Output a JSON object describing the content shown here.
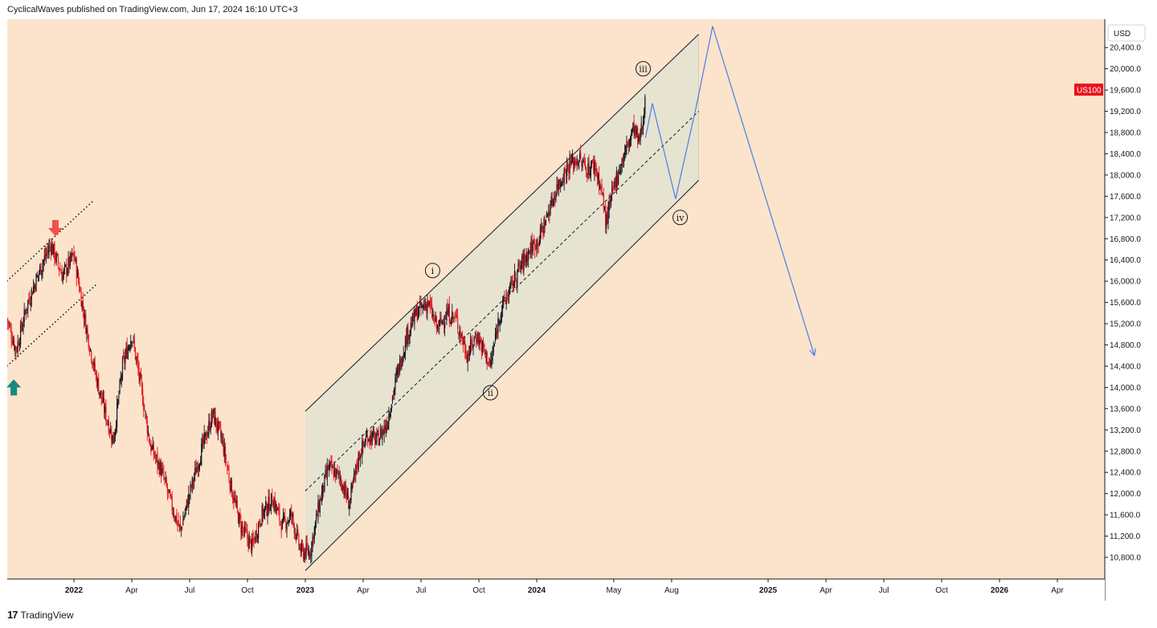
{
  "header": {
    "published": "CyclicalWaves published on TradingView.com, Jun 17, 2024 16:10 UTC+3"
  },
  "footer": {
    "brand": "TradingView",
    "logo": "17"
  },
  "currency_button": "USD",
  "symbol_badge": "US100",
  "colors": {
    "background": "#fbe4cb",
    "channel_fill": "#e3e3d2",
    "candle_up": "#131722",
    "candle_down": "#e8131d",
    "projection": "#4c7ce8",
    "arrow_down": "#f1514d",
    "arrow_up": "#138a80",
    "badge": "#e8131d"
  },
  "chart_data": {
    "type": "candlestick",
    "symbol": "US100",
    "currency": "USD",
    "y_ticks": [
      "10,800.0",
      "11,200.0",
      "11,600.0",
      "12,000.0",
      "12,400.0",
      "12,800.0",
      "13,200.0",
      "13,600.0",
      "14,000.0",
      "14,400.0",
      "14,800.0",
      "15,200.0",
      "15,600.0",
      "16,000.0",
      "16,400.0",
      "16,800.0",
      "17,200.0",
      "17,600.0",
      "18,000.0",
      "18,400.0",
      "18,800.0",
      "19,200.0",
      "19,600.0",
      "20,000.0",
      "20,400.0"
    ],
    "y_tick_values": [
      10800,
      11200,
      11600,
      12000,
      12400,
      12800,
      13200,
      13600,
      14000,
      14400,
      14800,
      15200,
      15600,
      16000,
      16400,
      16800,
      17200,
      17600,
      18000,
      18400,
      18800,
      19200,
      19600,
      20000,
      20400
    ],
    "x_ticks": [
      {
        "label": "2022",
        "t": 2022.0,
        "bold": true
      },
      {
        "label": "Apr",
        "t": 2022.25,
        "bold": false
      },
      {
        "label": "Jul",
        "t": 2022.5,
        "bold": false
      },
      {
        "label": "Oct",
        "t": 2022.75,
        "bold": false
      },
      {
        "label": "2023",
        "t": 2023.0,
        "bold": true
      },
      {
        "label": "Apr",
        "t": 2023.25,
        "bold": false
      },
      {
        "label": "Jul",
        "t": 2023.5,
        "bold": false
      },
      {
        "label": "Oct",
        "t": 2023.75,
        "bold": false
      },
      {
        "label": "2024",
        "t": 2024.0,
        "bold": true
      },
      {
        "label": "May",
        "t": 2024.333,
        "bold": false
      },
      {
        "label": "Aug",
        "t": 2024.583,
        "bold": false
      },
      {
        "label": "2025",
        "t": 2025.0,
        "bold": true
      },
      {
        "label": "Apr",
        "t": 2025.25,
        "bold": false
      },
      {
        "label": "Jul",
        "t": 2025.5,
        "bold": false
      },
      {
        "label": "Oct",
        "t": 2025.75,
        "bold": false
      },
      {
        "label": "2026",
        "t": 2026.0,
        "bold": true
      },
      {
        "label": "Apr",
        "t": 2026.25,
        "bold": false
      }
    ],
    "price_path": [
      [
        2021.71,
        15300
      ],
      [
        2021.75,
        14700
      ],
      [
        2021.8,
        15600
      ],
      [
        2021.86,
        16300
      ],
      [
        2021.9,
        16700
      ],
      [
        2021.95,
        16100
      ],
      [
        2022.0,
        16500
      ],
      [
        2022.05,
        15200
      ],
      [
        2022.09,
        14300
      ],
      [
        2022.13,
        13600
      ],
      [
        2022.17,
        13000
      ],
      [
        2022.21,
        14400
      ],
      [
        2022.25,
        15000
      ],
      [
        2022.29,
        14000
      ],
      [
        2022.33,
        12900
      ],
      [
        2022.38,
        12400
      ],
      [
        2022.42,
        11800
      ],
      [
        2022.46,
        11300
      ],
      [
        2022.5,
        12000
      ],
      [
        2022.55,
        12800
      ],
      [
        2022.6,
        13500
      ],
      [
        2022.64,
        13000
      ],
      [
        2022.68,
        12100
      ],
      [
        2022.72,
        11400
      ],
      [
        2022.77,
        11000
      ],
      [
        2022.81,
        11600
      ],
      [
        2022.86,
        11900
      ],
      [
        2022.9,
        11400
      ],
      [
        2022.94,
        11600
      ],
      [
        2022.98,
        10900
      ],
      [
        2023.02,
        10900
      ],
      [
        2023.06,
        11800
      ],
      [
        2023.1,
        12500
      ],
      [
        2023.15,
        12300
      ],
      [
        2023.19,
        11800
      ],
      [
        2023.23,
        12700
      ],
      [
        2023.27,
        13100
      ],
      [
        2023.31,
        13000
      ],
      [
        2023.35,
        13300
      ],
      [
        2023.4,
        14300
      ],
      [
        2023.44,
        15000
      ],
      [
        2023.48,
        15400
      ],
      [
        2023.53,
        15600
      ],
      [
        2023.57,
        15100
      ],
      [
        2023.61,
        15400
      ],
      [
        2023.65,
        15300
      ],
      [
        2023.7,
        14600
      ],
      [
        2023.74,
        15000
      ],
      [
        2023.8,
        14400
      ],
      [
        2023.84,
        15400
      ],
      [
        2023.88,
        15800
      ],
      [
        2023.92,
        16200
      ],
      [
        2023.97,
        16600
      ],
      [
        2024.01,
        16800
      ],
      [
        2024.05,
        17300
      ],
      [
        2024.09,
        17800
      ],
      [
        2024.14,
        18200
      ],
      [
        2024.18,
        18300
      ],
      [
        2024.22,
        18100
      ],
      [
        2024.25,
        18200
      ],
      [
        2024.28,
        17700
      ],
      [
        2024.3,
        17100
      ],
      [
        2024.34,
        17900
      ],
      [
        2024.38,
        18400
      ],
      [
        2024.42,
        18900
      ],
      [
        2024.44,
        18600
      ],
      [
        2024.46,
        19000
      ],
      [
        2024.47,
        19700
      ]
    ],
    "channel": {
      "upper": [
        [
          2023.0,
          13550
        ],
        [
          2024.7,
          20650
        ]
      ],
      "mid": [
        [
          2023.0,
          12050
        ],
        [
          2024.7,
          19200
        ]
      ],
      "lower": [
        [
          2023.0,
          10550
        ],
        [
          2024.7,
          17900
        ]
      ]
    },
    "left_channel": {
      "upper": [
        [
          2021.71,
          16000
        ],
        [
          2022.08,
          17500
        ]
      ],
      "lower": [
        [
          2021.71,
          14400
        ],
        [
          2022.1,
          15950
        ]
      ]
    },
    "projection": {
      "path": [
        [
          2024.47,
          18700
        ],
        [
          2024.5,
          19350
        ],
        [
          2024.6,
          17550
        ],
        [
          2024.69,
          19300
        ],
        [
          2024.76,
          20800
        ],
        [
          2025.2,
          14600
        ]
      ],
      "arrow_end": [
        2025.2,
        14600
      ]
    },
    "wave_labels": [
      {
        "label": "i",
        "t": 2023.55,
        "price": 16200
      },
      {
        "label": "ii",
        "t": 2023.8,
        "price": 13900
      },
      {
        "label": "iii",
        "t": 2024.46,
        "price": 20000
      },
      {
        "label": "iv",
        "t": 2024.62,
        "price": 17200
      }
    ],
    "markers": [
      {
        "type": "down-arrow",
        "t": 2021.92,
        "price": 16850
      },
      {
        "type": "up-arrow",
        "t": 2021.74,
        "price": 14000
      }
    ],
    "last_price": 19600
  }
}
